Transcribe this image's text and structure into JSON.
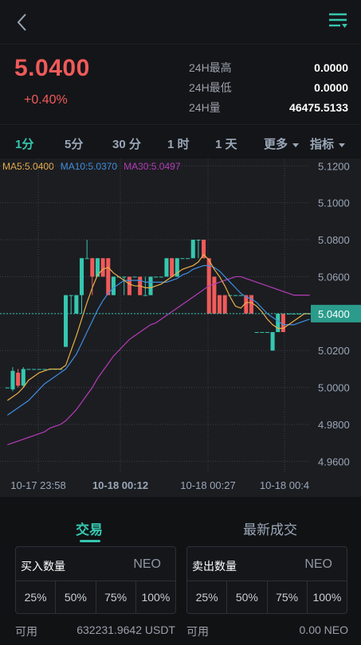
{
  "header": {
    "back_icon": "chevron-left-icon",
    "menu_icon": "filter-list-icon",
    "accent": "#35c7b0"
  },
  "ticker": {
    "last_price": "5.0400",
    "change": "+0.40%",
    "price_color": "#f05a5a",
    "stats": [
      {
        "label": "24H最高",
        "value": "0.0000"
      },
      {
        "label": "24H最低",
        "value": "0.0000"
      },
      {
        "label": "24H量",
        "value": "46475.5133"
      }
    ]
  },
  "intervals": {
    "items": [
      "1分",
      "5分",
      "30 分",
      "1 时",
      "1 天"
    ],
    "active": "1分",
    "more": "更多",
    "indicator": "指标"
  },
  "chart_data": {
    "type": "candlestick",
    "legend": [
      {
        "name": "MA5",
        "text": "MA5:5.0400",
        "color": "#e8b04a"
      },
      {
        "name": "MA10",
        "text": "MA10:5.0370",
        "color": "#3e8fe0"
      },
      {
        "name": "MA30",
        "text": "MA30:5.0497",
        "color": "#b53cb8"
      }
    ],
    "y_ticks": [
      "5.1200",
      "5.1000",
      "5.0800",
      "5.0600",
      "5.0400",
      "5.0200",
      "5.0000",
      "4.9800",
      "4.9600"
    ],
    "ylim": [
      4.955,
      5.124
    ],
    "x_ticks": [
      "10-17 23:58",
      "10-18 00:12",
      "10-18 00:27",
      "10-18 00:4"
    ],
    "current_price_label": "5.0400",
    "current_price": 5.04,
    "up_color": "#35c7b0",
    "down_color": "#f05a5a",
    "candles": [
      {
        "o": 5.0,
        "c": 5.0,
        "h": 5.0,
        "l": 5.0
      },
      {
        "o": 4.999,
        "c": 5.009,
        "h": 5.011,
        "l": 4.998
      },
      {
        "o": 5.008,
        "c": 5.001,
        "h": 5.01,
        "l": 5.0
      },
      {
        "o": 5.001,
        "c": 5.01,
        "h": 5.011,
        "l": 5.0
      },
      {
        "o": 5.01,
        "c": 5.01,
        "h": 5.01,
        "l": 5.01
      },
      {
        "o": 5.01,
        "c": 5.01,
        "h": 5.01,
        "l": 5.01
      },
      {
        "o": 5.01,
        "c": 5.01,
        "h": 5.01,
        "l": 5.01
      },
      {
        "o": 5.01,
        "c": 5.01,
        "h": 5.01,
        "l": 5.01
      },
      {
        "o": 5.01,
        "c": 5.01,
        "h": 5.01,
        "l": 5.01
      },
      {
        "o": 5.01,
        "c": 5.01,
        "h": 5.01,
        "l": 5.01
      },
      {
        "o": 5.01,
        "c": 5.01,
        "h": 5.01,
        "l": 5.01
      },
      {
        "o": 5.022,
        "c": 5.05,
        "h": 5.05,
        "l": 5.022
      },
      {
        "o": 5.05,
        "c": 5.05,
        "h": 5.05,
        "l": 5.04
      },
      {
        "o": 5.04,
        "c": 5.05,
        "h": 5.05,
        "l": 5.04
      },
      {
        "o": 5.05,
        "c": 5.07,
        "h": 5.07,
        "l": 5.04
      },
      {
        "o": 5.07,
        "c": 5.07,
        "h": 5.08,
        "l": 5.07
      },
      {
        "o": 5.07,
        "c": 5.06,
        "h": 5.07,
        "l": 5.05
      },
      {
        "o": 5.06,
        "c": 5.07,
        "h": 5.07,
        "l": 5.06
      },
      {
        "o": 5.07,
        "c": 5.06,
        "h": 5.07,
        "l": 5.06
      },
      {
        "o": 5.07,
        "c": 5.05,
        "h": 5.07,
        "l": 5.05
      },
      {
        "o": 5.05,
        "c": 5.06,
        "h": 5.06,
        "l": 5.05
      },
      {
        "o": 5.06,
        "c": 5.06,
        "h": 5.06,
        "l": 5.06
      },
      {
        "o": 5.06,
        "c": 5.06,
        "h": 5.06,
        "l": 5.05
      },
      {
        "o": 5.06,
        "c": 5.05,
        "h": 5.06,
        "l": 5.05
      },
      {
        "o": 5.06,
        "c": 5.06,
        "h": 5.06,
        "l": 5.06
      },
      {
        "o": 5.06,
        "c": 5.05,
        "h": 5.06,
        "l": 5.05
      },
      {
        "o": 5.05,
        "c": 5.05,
        "h": 5.06,
        "l": 5.05
      },
      {
        "o": 5.05,
        "c": 5.06,
        "h": 5.06,
        "l": 5.05
      },
      {
        "o": 5.06,
        "c": 5.06,
        "h": 5.06,
        "l": 5.06
      },
      {
        "o": 5.06,
        "c": 5.06,
        "h": 5.06,
        "l": 5.06
      },
      {
        "o": 5.06,
        "c": 5.07,
        "h": 5.07,
        "l": 5.06
      },
      {
        "o": 5.07,
        "c": 5.06,
        "h": 5.07,
        "l": 5.06
      },
      {
        "o": 5.06,
        "c": 5.07,
        "h": 5.07,
        "l": 5.06
      },
      {
        "o": 5.07,
        "c": 5.07,
        "h": 5.07,
        "l": 5.07
      },
      {
        "o": 5.07,
        "c": 5.07,
        "h": 5.07,
        "l": 5.07
      },
      {
        "o": 5.07,
        "c": 5.08,
        "h": 5.08,
        "l": 5.07
      },
      {
        "o": 5.08,
        "c": 5.08,
        "h": 5.08,
        "l": 5.07
      },
      {
        "o": 5.08,
        "c": 5.07,
        "h": 5.08,
        "l": 5.07
      },
      {
        "o": 5.07,
        "c": 5.04,
        "h": 5.07,
        "l": 5.04
      },
      {
        "o": 5.06,
        "c": 5.04,
        "h": 5.06,
        "l": 5.04
      },
      {
        "o": 5.05,
        "c": 5.04,
        "h": 5.05,
        "l": 5.04
      },
      {
        "o": 5.05,
        "c": 5.04,
        "h": 5.05,
        "l": 5.04
      },
      {
        "o": 5.05,
        "c": 5.05,
        "h": 5.05,
        "l": 5.05
      },
      {
        "o": 5.05,
        "c": 5.05,
        "h": 5.05,
        "l": 5.05
      },
      {
        "o": 5.05,
        "c": 5.05,
        "h": 5.05,
        "l": 5.05
      },
      {
        "o": 5.05,
        "c": 5.04,
        "h": 5.05,
        "l": 5.04
      },
      {
        "o": 5.05,
        "c": 5.04,
        "h": 5.05,
        "l": 5.04
      },
      {
        "o": 5.03,
        "c": 5.03,
        "h": 5.03,
        "l": 5.03
      },
      {
        "o": 5.03,
        "c": 5.03,
        "h": 5.03,
        "l": 5.03
      },
      {
        "o": 5.03,
        "c": 5.03,
        "h": 5.03,
        "l": 5.03
      },
      {
        "o": 5.02,
        "c": 5.03,
        "h": 5.03,
        "l": 5.02
      },
      {
        "o": 5.03,
        "c": 5.04,
        "h": 5.04,
        "l": 5.03
      },
      {
        "o": 5.04,
        "c": 5.03,
        "h": 5.04,
        "l": 5.03
      },
      {
        "o": 5.04,
        "c": 5.04,
        "h": 5.04,
        "l": 5.04
      },
      {
        "o": 5.04,
        "c": 5.04,
        "h": 5.04,
        "l": 5.04
      },
      {
        "o": 5.04,
        "c": 5.04,
        "h": 5.04,
        "l": 5.04
      },
      {
        "o": 5.04,
        "c": 5.04,
        "h": 5.04,
        "l": 5.04
      },
      {
        "o": 5.04,
        "c": 5.04,
        "h": 5.04,
        "l": 5.04
      }
    ],
    "ma5": [
      4.993,
      4.995,
      4.997,
      5.0,
      5.004,
      5.006,
      5.008,
      5.009,
      5.01,
      5.01,
      5.01,
      5.012,
      5.02,
      5.028,
      5.037,
      5.046,
      5.054,
      5.061,
      5.064,
      5.065,
      5.062,
      5.06,
      5.058,
      5.056,
      5.055,
      5.055,
      5.054,
      5.054,
      5.055,
      5.056,
      5.058,
      5.06,
      5.062,
      5.064,
      5.065,
      5.066,
      5.068,
      5.072,
      5.069,
      5.064,
      5.06,
      5.055,
      5.049,
      5.044,
      5.043,
      5.046,
      5.046,
      5.044,
      5.041,
      5.037,
      5.034,
      5.032,
      5.032,
      5.034,
      5.036,
      5.038,
      5.04,
      5.04
    ],
    "ma10": [
      4.985,
      4.987,
      4.989,
      4.991,
      4.993,
      4.996,
      4.999,
      5.002,
      5.004,
      5.006,
      5.008,
      5.01,
      5.014,
      5.018,
      5.024,
      5.03,
      5.036,
      5.042,
      5.047,
      5.051,
      5.054,
      5.056,
      5.058,
      5.058,
      5.058,
      5.058,
      5.057,
      5.057,
      5.057,
      5.057,
      5.057,
      5.058,
      5.059,
      5.061,
      5.062,
      5.064,
      5.065,
      5.066,
      5.066,
      5.065,
      5.063,
      5.06,
      5.057,
      5.054,
      5.051,
      5.049,
      5.048,
      5.046,
      5.043,
      5.04,
      5.038,
      5.036,
      5.034,
      5.034,
      5.034,
      5.035,
      5.036,
      5.037
    ],
    "ma30": [
      4.969,
      4.97,
      4.971,
      4.972,
      4.973,
      4.974,
      4.975,
      4.976,
      4.978,
      4.979,
      4.98,
      4.982,
      4.985,
      4.988,
      4.992,
      4.996,
      5.0,
      5.005,
      5.009,
      5.013,
      5.017,
      5.02,
      5.023,
      5.026,
      5.028,
      5.03,
      5.032,
      5.034,
      5.035,
      5.037,
      5.039,
      5.041,
      5.043,
      5.045,
      5.047,
      5.049,
      5.051,
      5.053,
      5.055,
      5.056,
      5.057,
      5.058,
      5.059,
      5.06,
      5.06,
      5.059,
      5.058,
      5.057,
      5.056,
      5.055,
      5.054,
      5.053,
      5.052,
      5.051,
      5.05,
      5.05,
      5.05,
      5.05
    ]
  },
  "trade": {
    "tabs": [
      "交易",
      "最新成交"
    ],
    "buy": {
      "label": "买入数量",
      "unit": "NEO",
      "percents": [
        "25%",
        "50%",
        "75%",
        "100%"
      ],
      "available_label": "可用",
      "available_value": "632231.9642  USDT"
    },
    "sell": {
      "label": "卖出数量",
      "unit": "NEO",
      "percents": [
        "25%",
        "50%",
        "75%",
        "100%"
      ],
      "available_label": "可用",
      "available_value": "0.00  NEO"
    }
  }
}
